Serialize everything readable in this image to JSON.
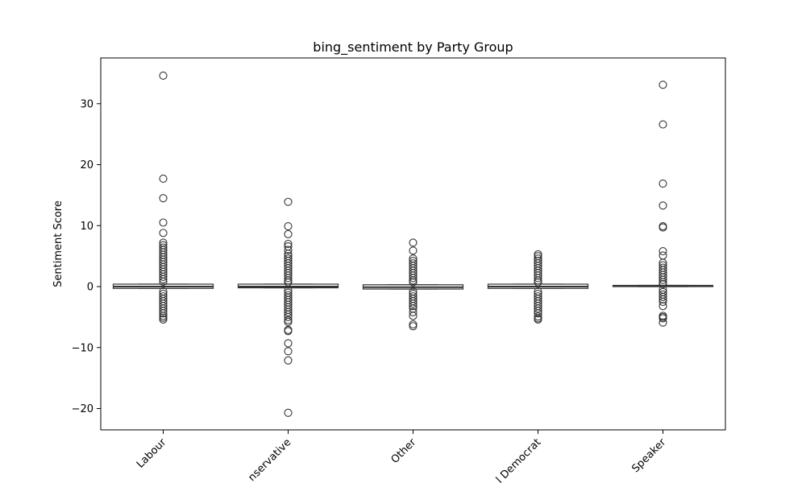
{
  "chart_data": {
    "type": "box",
    "title": "bing_sentiment by Party Group",
    "xlabel": "",
    "ylabel": "Sentiment Score",
    "categories": [
      "Labour",
      "Conservative",
      "Other",
      "Liberal Democrat",
      "Speaker"
    ],
    "category_labels_visible": [
      "Labour",
      "nservative",
      "Other",
      "l Democrat",
      "Speaker"
    ],
    "ylim": [
      -23.5,
      37.5
    ],
    "yticks": [
      -20,
      -10,
      0,
      10,
      20,
      30
    ],
    "ytick_labels": [
      "−20",
      "−10",
      "0",
      "10",
      "20",
      "30"
    ],
    "grid": false,
    "box_color": "#ffffff",
    "line_color": "#333333",
    "boxes": [
      {
        "name": "Labour",
        "q1": -0.3,
        "median": 0.0,
        "q3": 0.4,
        "whisker_low": -0.3,
        "whisker_high": 0.4,
        "outliers": [
          34.6,
          17.7,
          14.5,
          10.5,
          8.8,
          7.2,
          6.8,
          6.4,
          6.0,
          5.6,
          5.2,
          4.8,
          4.4,
          4.0,
          3.6,
          3.2,
          2.8,
          2.4,
          2.0,
          1.6,
          1.2,
          0.8,
          -0.8,
          -1.2,
          -1.6,
          -2.0,
          -2.4,
          -2.8,
          -3.2,
          -3.6,
          -4.0,
          -4.4,
          -4.8,
          -5.1,
          -5.4
        ]
      },
      {
        "name": "Conservative",
        "q1": -0.2,
        "median": 0.0,
        "q3": 0.4,
        "whisker_low": -0.2,
        "whisker_high": 0.4,
        "outliers": [
          13.9,
          9.9,
          8.6,
          7.0,
          6.6,
          6.0,
          5.4,
          5.0,
          4.6,
          4.2,
          3.8,
          3.4,
          3.0,
          2.6,
          2.2,
          1.8,
          1.4,
          1.0,
          0.7,
          -0.6,
          -1.0,
          -1.4,
          -1.8,
          -2.2,
          -2.6,
          -3.0,
          -3.4,
          -3.8,
          -4.2,
          -4.6,
          -5.0,
          -5.5,
          -5.8,
          -7.1,
          -7.3,
          -9.3,
          -10.6,
          -12.1,
          -20.7
        ]
      },
      {
        "name": "Other",
        "q1": -0.4,
        "median": -0.1,
        "q3": 0.3,
        "whisker_low": -0.4,
        "whisker_high": 0.3,
        "outliers": [
          7.2,
          5.9,
          4.6,
          4.2,
          3.8,
          3.4,
          3.0,
          2.6,
          2.2,
          1.8,
          1.4,
          1.0,
          0.7,
          -0.8,
          -1.2,
          -1.6,
          -2.0,
          -2.4,
          -2.8,
          -3.2,
          -3.6,
          -4.2,
          -4.8,
          -6.2,
          -6.5
        ]
      },
      {
        "name": "Liberal Democrat",
        "q1": -0.3,
        "median": 0.0,
        "q3": 0.4,
        "whisker_low": -0.3,
        "whisker_high": 0.4,
        "outliers": [
          5.3,
          5.0,
          4.6,
          4.2,
          3.8,
          3.4,
          3.0,
          2.6,
          2.2,
          1.8,
          1.4,
          1.0,
          0.7,
          -0.8,
          -1.2,
          -1.6,
          -2.0,
          -2.4,
          -2.8,
          -3.2,
          -3.6,
          -4.0,
          -4.4,
          -4.9,
          -5.2,
          -5.4
        ]
      },
      {
        "name": "Speaker",
        "q1": 0.0,
        "median": 0.1,
        "q3": 0.2,
        "whisker_low": 0.0,
        "whisker_high": 0.2,
        "outliers": [
          33.1,
          26.6,
          16.9,
          13.3,
          9.9,
          9.7,
          5.8,
          5.1,
          3.9,
          3.5,
          3.1,
          2.7,
          2.3,
          1.9,
          1.5,
          1.1,
          0.7,
          0.4,
          -0.5,
          -0.9,
          -1.3,
          -1.7,
          -2.1,
          -2.5,
          -3.2,
          -4.8,
          -5.0,
          -5.2,
          -5.9
        ]
      }
    ]
  }
}
